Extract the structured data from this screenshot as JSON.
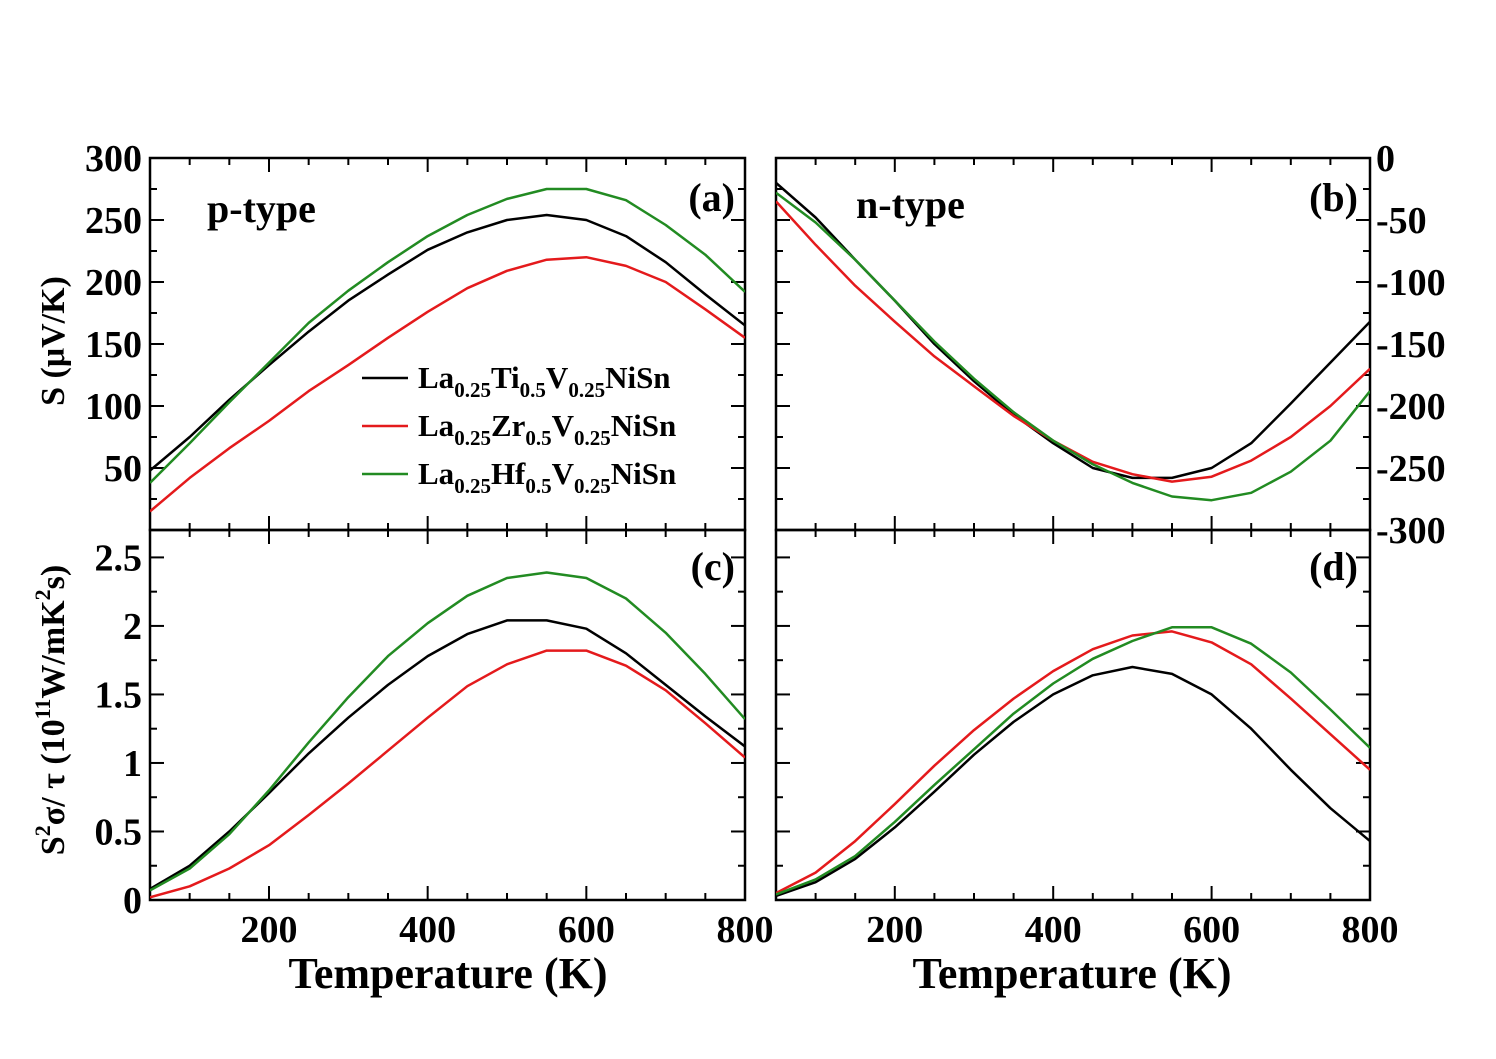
{
  "chart_data": [
    {
      "panel": "(a)",
      "type": "line",
      "annotation": "p-type",
      "ylabel": "S (μV/K)",
      "xlabel": "",
      "xlim": [
        50,
        800
      ],
      "ylim": [
        0,
        300
      ],
      "xticks": [
        "200",
        "400",
        "600",
        "800"
      ],
      "yticks": [
        "50",
        "100",
        "150",
        "200",
        "250",
        "300"
      ],
      "x": [
        50,
        100,
        150,
        200,
        250,
        300,
        350,
        400,
        450,
        500,
        550,
        600,
        650,
        700,
        750,
        800
      ],
      "series": [
        {
          "name": "La0.25Ti0.5V0.25NiSn",
          "color": "#000000",
          "values": [
            48,
            75,
            105,
            133,
            160,
            185,
            206,
            226,
            240,
            250,
            254,
            250,
            237,
            216,
            190,
            165
          ]
        },
        {
          "name": "La0.25Zr0.5V0.25NiSn",
          "color": "#e41a1c",
          "values": [
            15,
            42,
            66,
            88,
            112,
            133,
            155,
            176,
            195,
            209,
            218,
            220,
            213,
            200,
            178,
            155
          ]
        },
        {
          "name": "La0.25Hf0.5V0.25NiSn",
          "color": "#228b22",
          "values": [
            38,
            70,
            103,
            135,
            167,
            193,
            216,
            237,
            254,
            267,
            275,
            275,
            266,
            246,
            222,
            192
          ]
        }
      ]
    },
    {
      "panel": "(b)",
      "type": "line",
      "annotation": "n-type",
      "ylabel": "",
      "xlabel": "",
      "xlim": [
        50,
        800
      ],
      "ylim": [
        -300,
        0
      ],
      "xticks": [],
      "yticks": [
        "0",
        "-50",
        "-100",
        "-150",
        "-200",
        "-250",
        "-300"
      ],
      "x": [
        50,
        100,
        150,
        200,
        250,
        300,
        350,
        400,
        450,
        500,
        550,
        600,
        650,
        700,
        750,
        800
      ],
      "series": [
        {
          "name": "La0.25Ti0.5V0.25NiSn",
          "color": "#000000",
          "values": [
            -20,
            -48,
            -82,
            -115,
            -150,
            -180,
            -207,
            -230,
            -250,
            -258,
            -258,
            -250,
            -230,
            -198,
            -165,
            -132
          ]
        },
        {
          "name": "La0.25Zr0.5V0.25NiSn",
          "color": "#e41a1c",
          "values": [
            -35,
            -70,
            -103,
            -132,
            -160,
            -184,
            -208,
            -228,
            -245,
            -255,
            -261,
            -257,
            -244,
            -225,
            -200,
            -170
          ]
        },
        {
          "name": "La0.25Hf0.5V0.25NiSn",
          "color": "#228b22",
          "values": [
            -28,
            -52,
            -82,
            -115,
            -148,
            -178,
            -205,
            -228,
            -247,
            -262,
            -273,
            -276,
            -270,
            -253,
            -228,
            -188
          ]
        }
      ]
    },
    {
      "panel": "(c)",
      "type": "line",
      "ylabel_parts": {
        "s": "S",
        "sup1": "2",
        "mid": "σ/ τ (10",
        "sup2": "11",
        "tail": "W/mK",
        "sup3": "2",
        "end": "s)"
      },
      "xlabel": "Temperature (K)",
      "xlim": [
        50,
        800
      ],
      "ylim": [
        0,
        2.7
      ],
      "xticks": [
        "200",
        "400",
        "600",
        "800"
      ],
      "yticks": [
        "0",
        "0.5",
        "1",
        "1.5",
        "2",
        "2.5"
      ],
      "x": [
        50,
        100,
        150,
        200,
        250,
        300,
        350,
        400,
        450,
        500,
        550,
        600,
        650,
        700,
        750,
        800
      ],
      "series": [
        {
          "name": "La0.25Ti0.5V0.25NiSn",
          "color": "#000000",
          "values": [
            0.08,
            0.25,
            0.5,
            0.78,
            1.07,
            1.33,
            1.57,
            1.78,
            1.94,
            2.04,
            2.04,
            1.98,
            1.8,
            1.57,
            1.34,
            1.12
          ]
        },
        {
          "name": "La0.25Zr0.5V0.25NiSn",
          "color": "#e41a1c",
          "values": [
            0.02,
            0.1,
            0.23,
            0.4,
            0.62,
            0.85,
            1.09,
            1.33,
            1.56,
            1.72,
            1.82,
            1.82,
            1.71,
            1.53,
            1.29,
            1.04
          ]
        },
        {
          "name": "La0.25Hf0.5V0.25NiSn",
          "color": "#228b22",
          "values": [
            0.07,
            0.23,
            0.48,
            0.8,
            1.15,
            1.48,
            1.78,
            2.02,
            2.22,
            2.35,
            2.39,
            2.35,
            2.2,
            1.95,
            1.65,
            1.32
          ]
        }
      ]
    },
    {
      "panel": "(d)",
      "type": "line",
      "xlabel": "Temperature (K)",
      "xlim": [
        50,
        800
      ],
      "ylim": [
        0,
        2.7
      ],
      "xticks": [
        "200",
        "400",
        "600",
        "800"
      ],
      "yticks": [],
      "x": [
        50,
        100,
        150,
        200,
        250,
        300,
        350,
        400,
        450,
        500,
        550,
        600,
        650,
        700,
        750,
        800
      ],
      "series": [
        {
          "name": "La0.25Ti0.5V0.25NiSn",
          "color": "#000000",
          "values": [
            0.03,
            0.13,
            0.3,
            0.53,
            0.79,
            1.06,
            1.3,
            1.5,
            1.64,
            1.7,
            1.65,
            1.5,
            1.25,
            0.95,
            0.67,
            0.43
          ]
        },
        {
          "name": "La0.25Zr0.5V0.25NiSn",
          "color": "#e41a1c",
          "values": [
            0.05,
            0.2,
            0.43,
            0.7,
            0.98,
            1.24,
            1.47,
            1.67,
            1.83,
            1.93,
            1.96,
            1.88,
            1.72,
            1.47,
            1.21,
            0.95
          ]
        },
        {
          "name": "La0.25Hf0.5V0.25NiSn",
          "color": "#228b22",
          "values": [
            0.04,
            0.15,
            0.32,
            0.57,
            0.84,
            1.1,
            1.36,
            1.58,
            1.76,
            1.89,
            1.99,
            1.99,
            1.87,
            1.66,
            1.39,
            1.11
          ]
        }
      ]
    }
  ],
  "legend": [
    {
      "base": "La",
      "s1": "0.25",
      "m": "Ti",
      "s2": "0.5",
      "v": "V",
      "s3": "0.25",
      "tail": "NiSn",
      "color": "#000000"
    },
    {
      "base": "La",
      "s1": "0.25",
      "m": "Zr",
      "s2": "0.5",
      "v": "V",
      "s3": "0.25",
      "tail": "NiSn",
      "color": "#e41a1c"
    },
    {
      "base": "La",
      "s1": "0.25",
      "m": "Hf",
      "s2": "0.5",
      "v": "V",
      "s3": "0.25",
      "tail": "NiSn",
      "color": "#228b22"
    }
  ]
}
